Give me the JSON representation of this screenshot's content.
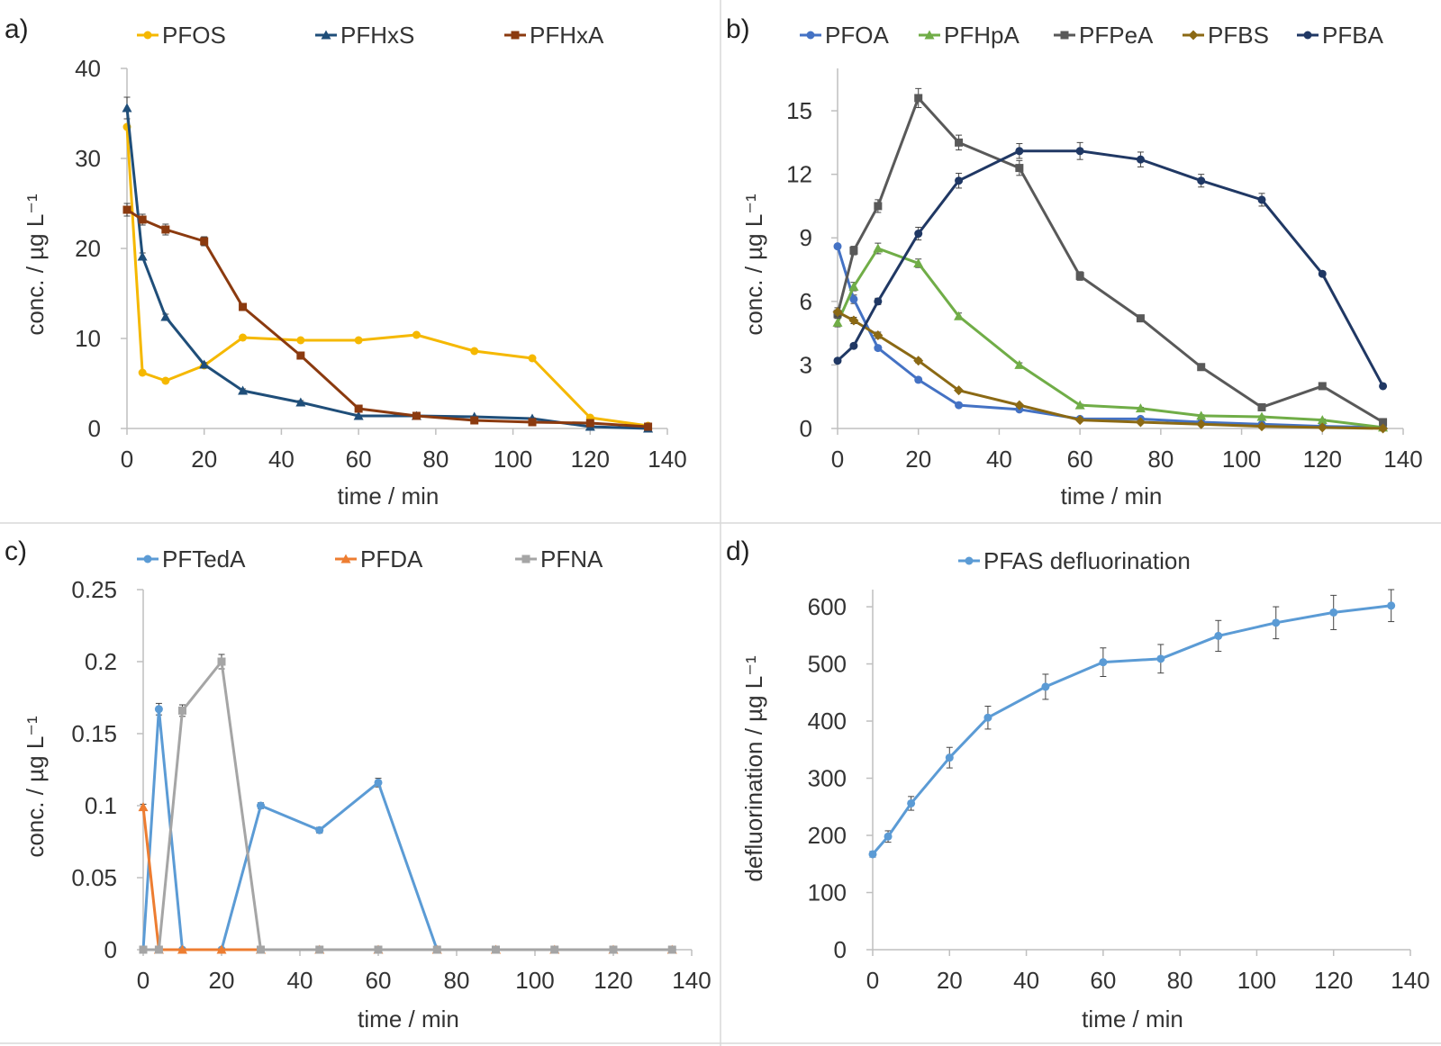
{
  "chart_data": [
    {
      "id": "a",
      "panel_label": "a)",
      "type": "line",
      "xlabel": "time / min",
      "ylabel": "conc. / µg L⁻¹",
      "xlim": [
        0,
        140
      ],
      "ylim": [
        0,
        40
      ],
      "xticks": [
        0,
        20,
        40,
        60,
        80,
        100,
        120,
        140
      ],
      "yticks": [
        0,
        10,
        20,
        30,
        40
      ],
      "ytick_labels": [
        "0",
        "10",
        "20",
        "30",
        "40"
      ],
      "legend_position": "top",
      "series": [
        {
          "name": "PFOS",
          "color": "#F5B800",
          "marker": "circle",
          "x": [
            0,
            4,
            10,
            20,
            30,
            45,
            60,
            75,
            90,
            105,
            120,
            135
          ],
          "y": [
            33.5,
            6.2,
            5.3,
            7.0,
            10.1,
            9.8,
            9.8,
            10.4,
            8.6,
            7.8,
            1.2,
            0.3
          ],
          "err": [
            0,
            0.2,
            0.2,
            0.2,
            0.2,
            0.2,
            0.2,
            0.2,
            0.2,
            0.2,
            0.1,
            0
          ]
        },
        {
          "name": "PFHxS",
          "color": "#1F4E79",
          "marker": "triangle",
          "x": [
            0,
            4,
            10,
            20,
            30,
            45,
            60,
            75,
            90,
            105,
            120,
            135
          ],
          "y": [
            35.6,
            19.1,
            12.4,
            7.1,
            4.2,
            2.9,
            1.4,
            1.4,
            1.3,
            1.1,
            0.2,
            0
          ],
          "err": [
            1.2,
            0.4,
            0.3,
            0.2,
            0.2,
            0.2,
            0.1,
            0.1,
            0.1,
            0.1,
            0,
            0
          ]
        },
        {
          "name": "PFHxA",
          "color": "#8B3A0F",
          "marker": "square",
          "x": [
            0,
            4,
            10,
            20,
            30,
            45,
            60,
            75,
            90,
            105,
            120,
            135
          ],
          "y": [
            24.3,
            23.2,
            22.1,
            20.8,
            13.5,
            8.1,
            2.2,
            1.4,
            0.9,
            0.7,
            0.6,
            0.2
          ],
          "err": [
            0.7,
            0.6,
            0.6,
            0.5,
            0.3,
            0.2,
            0.1,
            0.1,
            0.1,
            0.1,
            0.1,
            0
          ]
        }
      ]
    },
    {
      "id": "b",
      "panel_label": "b)",
      "type": "line",
      "xlabel": "time / min",
      "ylabel": "conc. / µg L⁻¹",
      "xlim": [
        0,
        140
      ],
      "ylim": [
        0,
        17
      ],
      "xticks": [
        0,
        20,
        40,
        60,
        80,
        100,
        120,
        140
      ],
      "yticks": [
        0,
        3,
        6,
        9,
        12,
        15
      ],
      "ytick_labels": [
        "0",
        "3",
        "6",
        "9",
        "12",
        "15"
      ],
      "legend_position": "top",
      "series": [
        {
          "name": "PFOA",
          "color": "#4472C4",
          "marker": "circle",
          "x": [
            0,
            4,
            10,
            20,
            30,
            45,
            60,
            75,
            90,
            105,
            120,
            135
          ],
          "y": [
            8.6,
            6.1,
            3.8,
            2.3,
            1.1,
            0.9,
            0.45,
            0.45,
            0.3,
            0.2,
            0.1,
            0.05
          ],
          "err": [
            0,
            0.2,
            0.1,
            0.1,
            0.05,
            0.05,
            0,
            0,
            0,
            0,
            0,
            0
          ]
        },
        {
          "name": "PFHpA",
          "color": "#70AD47",
          "marker": "triangle",
          "x": [
            0,
            4,
            10,
            20,
            30,
            45,
            60,
            75,
            90,
            105,
            120,
            135
          ],
          "y": [
            5.0,
            6.7,
            8.5,
            7.8,
            5.3,
            3.0,
            1.1,
            0.95,
            0.6,
            0.55,
            0.4,
            0.05
          ],
          "err": [
            0.2,
            0.2,
            0.25,
            0.2,
            0.15,
            0.1,
            0.05,
            0.05,
            0.05,
            0.05,
            0.05,
            0
          ]
        },
        {
          "name": "PFPeA",
          "color": "#595959",
          "marker": "square",
          "x": [
            0,
            4,
            10,
            20,
            30,
            45,
            60,
            75,
            90,
            105,
            120,
            135
          ],
          "y": [
            5.4,
            8.4,
            10.5,
            15.6,
            13.5,
            12.3,
            7.2,
            5.2,
            2.9,
            1.0,
            2.0,
            0.3
          ],
          "err": [
            0.2,
            0.2,
            0.3,
            0.45,
            0.35,
            0.35,
            0.2,
            0.1,
            0.1,
            0.05,
            0.05,
            0
          ]
        },
        {
          "name": "PFBS",
          "color": "#8B6914",
          "marker": "diamond",
          "x": [
            0,
            4,
            10,
            20,
            30,
            45,
            60,
            75,
            90,
            105,
            120,
            135
          ],
          "y": [
            5.5,
            5.1,
            4.4,
            3.2,
            1.8,
            1.1,
            0.4,
            0.3,
            0.2,
            0.1,
            0.05,
            0
          ],
          "err": [
            0.2,
            0.15,
            0.15,
            0.1,
            0.05,
            0.05,
            0,
            0,
            0,
            0,
            0,
            0
          ]
        },
        {
          "name": "PFBA",
          "color": "#203864",
          "marker": "circle",
          "x": [
            0,
            4,
            10,
            20,
            30,
            45,
            60,
            75,
            90,
            105,
            120,
            135
          ],
          "y": [
            3.2,
            3.9,
            6.0,
            9.2,
            11.7,
            13.1,
            13.1,
            12.7,
            11.7,
            10.8,
            7.3,
            2.0
          ],
          "err": [
            0.1,
            0.1,
            0.15,
            0.3,
            0.35,
            0.35,
            0.4,
            0.35,
            0.3,
            0.3,
            0.1,
            0.05
          ]
        }
      ]
    },
    {
      "id": "c",
      "panel_label": "c)",
      "type": "line",
      "xlabel": "time / min",
      "ylabel": "conc. / µg L⁻¹",
      "xlim": [
        0,
        140
      ],
      "ylim": [
        0,
        0.25
      ],
      "xticks": [
        0,
        20,
        40,
        60,
        80,
        100,
        120,
        140
      ],
      "yticks": [
        0,
        0.05,
        0.1,
        0.15,
        0.2,
        0.25
      ],
      "ytick_labels": [
        "0",
        "0.05",
        "0.1",
        "0.15",
        "0.2",
        "0.25"
      ],
      "legend_position": "top",
      "series": [
        {
          "name": "PFTedA",
          "color": "#5B9BD5",
          "marker": "circle",
          "x": [
            0,
            4,
            10,
            20,
            30,
            45,
            60,
            75,
            90,
            105,
            120,
            135
          ],
          "y": [
            0,
            0.167,
            0,
            0,
            0.1,
            0.083,
            0.116,
            0,
            0,
            0,
            0,
            0
          ],
          "err": [
            0,
            0.004,
            0,
            0,
            0.002,
            0.002,
            0.003,
            0,
            0,
            0,
            0,
            0
          ]
        },
        {
          "name": "PFDA",
          "color": "#ED7D31",
          "marker": "triangle",
          "x": [
            0,
            4,
            10,
            20,
            30,
            45,
            60,
            75,
            90,
            105,
            120,
            135
          ],
          "y": [
            0.099,
            0,
            0,
            0,
            0,
            0,
            0,
            0,
            0,
            0,
            0,
            0
          ],
          "err": [
            0.002,
            0,
            0,
            0,
            0,
            0,
            0,
            0,
            0,
            0,
            0,
            0
          ]
        },
        {
          "name": "PFNA",
          "color": "#A5A5A5",
          "marker": "square",
          "x": [
            0,
            4,
            10,
            20,
            30,
            45,
            60,
            75,
            90,
            105,
            120,
            135
          ],
          "y": [
            0,
            0,
            0.166,
            0.2,
            0,
            0,
            0,
            0,
            0,
            0,
            0,
            0
          ],
          "err": [
            0,
            0,
            0.004,
            0.005,
            0,
            0,
            0,
            0,
            0,
            0,
            0,
            0
          ]
        }
      ]
    },
    {
      "id": "d",
      "panel_label": "d)",
      "type": "line",
      "xlabel": "time / min",
      "ylabel": "defluorination / µg L⁻¹",
      "xlim": [
        0,
        140
      ],
      "ylim": [
        0,
        630
      ],
      "xticks": [
        0,
        20,
        40,
        60,
        80,
        100,
        120,
        140
      ],
      "yticks": [
        0,
        100,
        200,
        300,
        400,
        500,
        600
      ],
      "ytick_labels": [
        "0",
        "100",
        "200",
        "300",
        "400",
        "500",
        "600"
      ],
      "legend_position": "top",
      "series": [
        {
          "name": "PFAS defluorination",
          "color": "#5B9BD5",
          "marker": "circle",
          "x": [
            0,
            4,
            10,
            20,
            30,
            45,
            60,
            75,
            90,
            105,
            120,
            135
          ],
          "y": [
            167,
            198,
            256,
            336,
            406,
            460,
            503,
            509,
            549,
            572,
            590,
            602
          ],
          "err": [
            5,
            10,
            12,
            18,
            20,
            22,
            25,
            25,
            27,
            28,
            30,
            28
          ]
        }
      ]
    }
  ]
}
